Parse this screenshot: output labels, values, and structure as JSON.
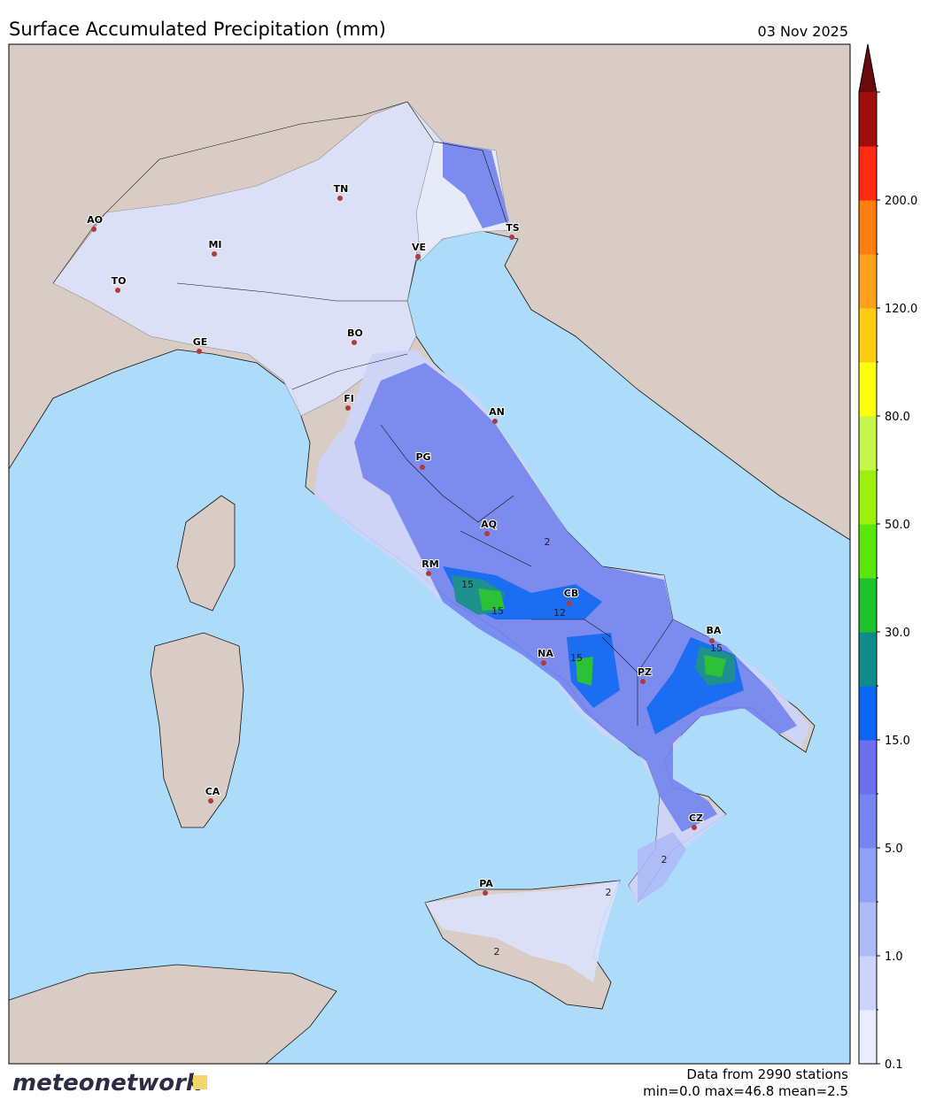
{
  "title": "Surface Accumulated Precipitation (mm)",
  "date": "03 Nov 2025",
  "cities": [
    "AO",
    "MI",
    "TO",
    "GE",
    "BO",
    "TN",
    "VE",
    "TS",
    "FI",
    "AN",
    "PG",
    "AQ",
    "RM",
    "CB",
    "NA",
    "PZ",
    "BA",
    "CZ",
    "CA",
    "PA"
  ],
  "contour_labels": [
    "15",
    "15",
    "12",
    "15",
    "2",
    "2",
    "2",
    "2",
    "15"
  ],
  "colorbar": {
    "colors": [
      "#e9edfd",
      "#ccd4fb",
      "#adbcf9",
      "#8ea2f6",
      "#7586f2",
      "#6c6fee",
      "#0b66f6",
      "#0f8c8a",
      "#1ec22c",
      "#5ae80c",
      "#9cf00c",
      "#c6f74a",
      "#ffff10",
      "#ffcc12",
      "#ffa01a",
      "#ff7f10",
      "#ff2a12",
      "#a00d0d"
    ],
    "extend_color": "#6b0a0a",
    "ticks": [
      "0.1",
      "1.0",
      "5.0",
      "15.0",
      "30.0",
      "50.0",
      "80.0",
      "120.0",
      "200.0"
    ]
  },
  "footer": {
    "stations": "Data from 2990 stations",
    "stats": "min=0.0 max=46.8 mean=2.5"
  },
  "logo": "meteonetwork"
}
